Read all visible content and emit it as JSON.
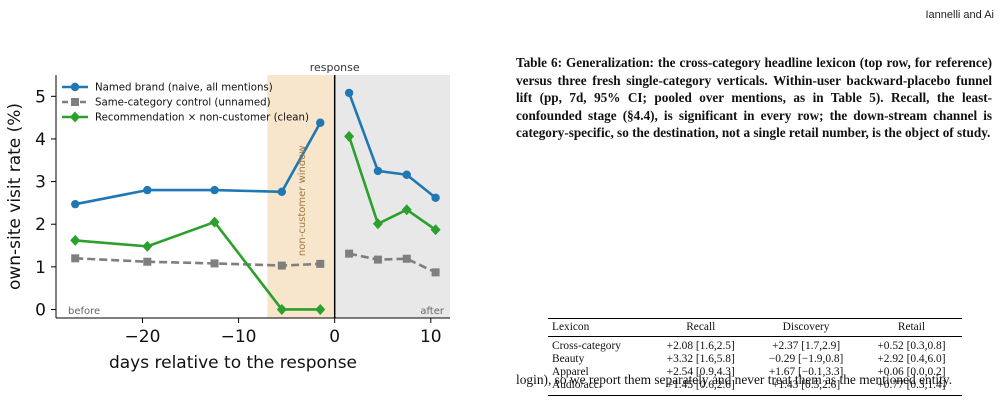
{
  "header": {
    "running_head": "Iannelli and Ai"
  },
  "chart_data": {
    "type": "line",
    "xlabel": "days relative to the response",
    "ylabel": "own-site visit rate (%)",
    "xlim": [
      -29,
      12
    ],
    "ylim": [
      -0.2,
      5.5
    ],
    "xticks": [
      -20,
      -10,
      0,
      10
    ],
    "yticks": [
      0,
      1,
      2,
      3,
      4,
      5
    ],
    "legend": "top-left",
    "annotations": {
      "response": "response",
      "window": "non-customer window",
      "before": "before",
      "after": "after"
    },
    "window_range": [
      -7,
      0
    ],
    "after_range": [
      0,
      12
    ],
    "series": [
      {
        "name": "Named brand (naive, all mentions)",
        "color": "#1f77b4",
        "marker": "circle",
        "dash": false,
        "segments": [
          {
            "x": [
              -27,
              -19.5,
              -12.5,
              -5.5,
              -1.5
            ],
            "y": [
              2.47,
              2.8,
              2.8,
              2.76,
              4.38
            ]
          },
          {
            "x": [
              1.5,
              4.5,
              7.5,
              10.5
            ],
            "y": [
              5.08,
              3.25,
              3.16,
              2.62
            ]
          }
        ]
      },
      {
        "name": "Same-category control (unnamed)",
        "color": "#7f7f7f",
        "marker": "square",
        "dash": true,
        "segments": [
          {
            "x": [
              -27,
              -19.5,
              -12.5,
              -5.5,
              -1.5
            ],
            "y": [
              1.2,
              1.12,
              1.08,
              1.03,
              1.07
            ]
          },
          {
            "x": [
              1.5,
              4.5,
              7.5,
              10.5
            ],
            "y": [
              1.31,
              1.17,
              1.19,
              0.87
            ]
          }
        ]
      },
      {
        "name": "Recommendation × non-customer (clean)",
        "color": "#2ca02c",
        "marker": "diamond",
        "dash": false,
        "segments": [
          {
            "x": [
              -27,
              -19.5,
              -12.5,
              -5.5,
              -1.5
            ],
            "y": [
              1.62,
              1.48,
              2.05,
              0.0,
              0.0
            ]
          },
          {
            "x": [
              1.5,
              4.5,
              7.5,
              10.5
            ],
            "y": [
              4.06,
              2.01,
              2.34,
              1.87
            ]
          }
        ]
      }
    ]
  },
  "table": {
    "caption": "Table 6: Generalization: the cross-category headline lexicon (top row, for reference) versus three fresh single-category verticals. Within-user backward-placebo funnel lift (pp, 7d, 95% CI; pooled over mentions, as in Table 5). Recall, the least-confounded stage (§4.4), is significant in every row; the down-stream channel is category-specific, so the destination, not a single retail number, is the object of study.",
    "headers": [
      "Lexicon",
      "Recall",
      "Discovery",
      "Retail"
    ],
    "rows": [
      [
        "Cross-category",
        "+2.08 [1.6,2.5]",
        "+2.37 [1.7,2.9]",
        "+0.52 [0.3,0.8]"
      ],
      [
        "Beauty",
        "+3.32 [1.6,5.8]",
        "−0.29 [−1.9,0.8]",
        "+2.92 [0.4,6.0]"
      ],
      [
        "Apparel",
        "+2.54 [0.9,4.3]",
        "+1.67 [−0.1,3.3]",
        "+0.06 [0.0,0.2]"
      ],
      [
        "Audio/acc.",
        "+1.45 [0.6,2.6]",
        "+1.43 [0.5,2.6]",
        "+0.77 [0.3,1.4]"
      ]
    ]
  },
  "body": {
    "text": "login), so we report them separately and never treat them as the mentioned entity."
  }
}
